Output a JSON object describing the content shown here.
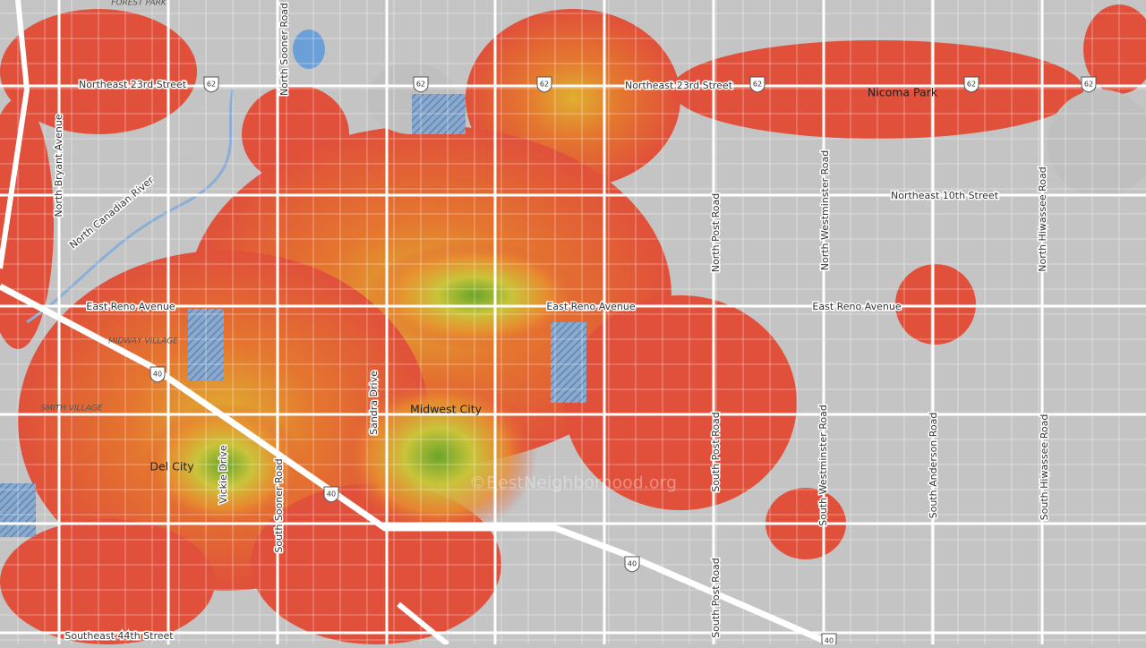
{
  "map": {
    "labels": [
      "FOREST PARK",
      "North Sooner Road",
      "Northeast 23rd Street",
      "Northeast 23rd Street",
      "Nicoma Park",
      "North Bryant Avenue",
      "North Canadian River",
      "Northeast 10th Street",
      "North Post Road",
      "North Westminster Road",
      "North Hiwassee Road",
      "East Reno Avenue",
      "East Reno Avenue",
      "East Reno Avenue",
      "MIDWAY VILLAGE",
      "SMITH VILLAGE",
      "Midwest City",
      "Sandra Drive",
      "Del City",
      "Vickie Drive",
      "South Sooner Road",
      "South Post Road",
      "South Westminster Road",
      "South Anderson Road",
      "South Hiwassee Road",
      "South Post Road",
      "Southeast 44th Street"
    ],
    "shields": [
      "62",
      "62",
      "62",
      "62",
      "62",
      "62",
      "40",
      "40",
      "40",
      "40"
    ],
    "watermark": "©BestNeighborhood.org"
  }
}
